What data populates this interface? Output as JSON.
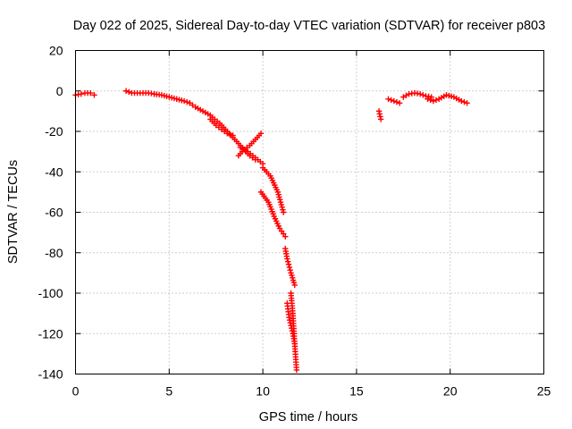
{
  "chart_data": {
    "type": "scatter",
    "title": "Day 022 of 2025, Sidereal Day-to-day VTEC variation (SDTVAR) for receiver p803",
    "xlabel": "GPS time / hours",
    "ylabel": "SDTVAR / TECUs",
    "xlim": [
      0,
      25
    ],
    "ylim": [
      -140,
      20
    ],
    "xticks": [
      "0",
      "5",
      "10",
      "15",
      "20",
      "25"
    ],
    "yticks": [
      "20",
      "0",
      "-20",
      "-40",
      "-60",
      "-80",
      "-100",
      "-120",
      "-140"
    ],
    "grid": true,
    "marker": "plus",
    "color": "#ff0000",
    "series": [
      {
        "name": "SDTVAR",
        "segments": [
          {
            "x": [
              0.0,
              0.3,
              0.5,
              0.8,
              1.0
            ],
            "y": [
              -2,
              -1.5,
              -1,
              -1,
              -2
            ]
          },
          {
            "x": [
              2.7,
              3.0,
              3.3,
              3.6,
              3.9,
              4.2
            ],
            "y": [
              0,
              -1,
              -1,
              -1,
              -1,
              -1.5
            ]
          },
          {
            "x": [
              4.2,
              4.6,
              5.0,
              5.4,
              5.8,
              6.1
            ],
            "y": [
              -1.5,
              -2,
              -3,
              -4,
              -5,
              -6
            ]
          },
          {
            "x": [
              6.1,
              6.4,
              6.8,
              7.2
            ],
            "y": [
              -6,
              -8,
              -10,
              -12
            ]
          },
          {
            "x": [
              7.2,
              7.5,
              7.8,
              8.1,
              8.4
            ],
            "y": [
              -14,
              -17,
              -19,
              -21,
              -22
            ]
          },
          {
            "x": [
              7.3,
              7.7,
              8.1,
              8.5,
              8.9,
              9.3,
              9.6
            ],
            "y": [
              -13,
              -16,
              -20,
              -24,
              -28,
              -32,
              -34
            ]
          },
          {
            "x": [
              8.7,
              9.0,
              9.3,
              9.6,
              9.9
            ],
            "y": [
              -32,
              -29,
              -27,
              -24,
              -21
            ]
          },
          {
            "x": [
              8.8,
              9.2,
              9.6,
              10.0
            ],
            "y": [
              -28,
              -30,
              -33,
              -36
            ]
          },
          {
            "x": [
              10.0,
              10.4,
              10.8,
              11.1
            ],
            "y": [
              -38,
              -42,
              -50,
              -60
            ]
          },
          {
            "x": [
              9.9,
              10.3,
              10.6,
              10.9,
              11.2
            ],
            "y": [
              -50,
              -55,
              -62,
              -68,
              -72
            ]
          },
          {
            "x": [
              11.2,
              11.3,
              11.5,
              11.7
            ],
            "y": [
              -78,
              -83,
              -90,
              -96
            ]
          },
          {
            "x": [
              11.3,
              11.4,
              11.6,
              11.7
            ],
            "y": [
              -105,
              -112,
              -120,
              -125
            ]
          },
          {
            "x": [
              11.5,
              11.6,
              11.7,
              11.8
            ],
            "y": [
              -100,
              -110,
              -125,
              -138
            ]
          },
          {
            "x": [
              16.2,
              16.3
            ],
            "y": [
              -10,
              -14
            ]
          },
          {
            "x": [
              16.7,
              17.0,
              17.3
            ],
            "y": [
              -4,
              -5,
              -6
            ]
          },
          {
            "x": [
              17.5,
              17.8,
              18.1,
              18.4,
              18.7,
              19.0
            ],
            "y": [
              -3,
              -1.5,
              -1,
              -1.5,
              -2.5,
              -3
            ]
          },
          {
            "x": [
              18.8,
              19.1,
              19.4,
              19.8,
              20.2,
              20.6,
              20.9
            ],
            "y": [
              -4,
              -5,
              -4,
              -2,
              -3,
              -5,
              -6
            ]
          }
        ]
      }
    ]
  }
}
